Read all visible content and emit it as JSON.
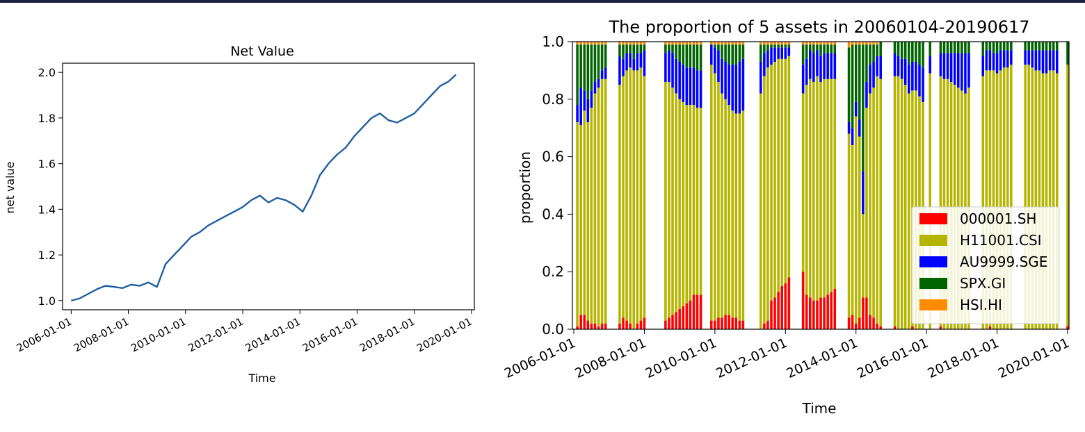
{
  "colors": {
    "frame": "#1c2340",
    "line": "#1f5fa0",
    "asset_colors": [
      "#ff0000",
      "#b5b500",
      "#0000ff",
      "#006400",
      "#ff8c00"
    ]
  },
  "chart_data": [
    {
      "type": "line",
      "title": "Net Value",
      "xlabel": "Time",
      "ylabel": "net value",
      "xlim": [
        2005.7,
        2020.1
      ],
      "ylim": [
        0.96,
        2.04
      ],
      "grid": false,
      "x_ticks": [
        {
          "value": 2006,
          "label": "2006-01-01"
        },
        {
          "value": 2008,
          "label": "2008-01-01"
        },
        {
          "value": 2010,
          "label": "2010-01-01"
        },
        {
          "value": 2012,
          "label": "2012-01-01"
        },
        {
          "value": 2014,
          "label": "2014-01-01"
        },
        {
          "value": 2016,
          "label": "2016-01-01"
        },
        {
          "value": 2018,
          "label": "2018-01-01"
        },
        {
          "value": 2020,
          "label": "2020-01-01"
        }
      ],
      "y_ticks": [
        {
          "value": 1.0,
          "label": "1.0"
        },
        {
          "value": 1.2,
          "label": "1.2"
        },
        {
          "value": 1.4,
          "label": "1.4"
        },
        {
          "value": 1.6,
          "label": "1.6"
        },
        {
          "value": 1.8,
          "label": "1.8"
        },
        {
          "value": 2.0,
          "label": "2.0"
        }
      ],
      "series": [
        {
          "x": [
            2006.0,
            2006.3,
            2006.6,
            2006.9,
            2007.2,
            2007.5,
            2007.8,
            2008.1,
            2008.4,
            2008.7,
            2009.0,
            2009.3,
            2009.6,
            2009.9,
            2010.2,
            2010.5,
            2010.8,
            2011.1,
            2011.4,
            2011.7,
            2012.0,
            2012.3,
            2012.6,
            2012.9,
            2013.2,
            2013.5,
            2013.8,
            2014.1,
            2014.4,
            2014.7,
            2015.0,
            2015.3,
            2015.6,
            2015.9,
            2016.2,
            2016.5,
            2016.8,
            2017.1,
            2017.4,
            2017.7,
            2018.0,
            2018.3,
            2018.6,
            2018.9,
            2019.2,
            2019.46
          ],
          "y": [
            1.0,
            1.01,
            1.03,
            1.05,
            1.065,
            1.06,
            1.055,
            1.07,
            1.065,
            1.08,
            1.06,
            1.16,
            1.2,
            1.24,
            1.28,
            1.3,
            1.33,
            1.35,
            1.37,
            1.39,
            1.41,
            1.44,
            1.46,
            1.43,
            1.45,
            1.44,
            1.42,
            1.39,
            1.46,
            1.55,
            1.6,
            1.64,
            1.67,
            1.72,
            1.76,
            1.8,
            1.82,
            1.79,
            1.78,
            1.8,
            1.82,
            1.86,
            1.9,
            1.94,
            1.96,
            1.99
          ]
        }
      ]
    },
    {
      "type": "bar",
      "stacked": true,
      "title": "The proportion of 5 assets in 20060104-20190617",
      "xlabel": "Time",
      "ylabel": "proportion",
      "xlim": [
        2005.96,
        2020.04
      ],
      "ylim": [
        0,
        1.0
      ],
      "grid": false,
      "legend_position": "bottom-right",
      "x_ticks": [
        {
          "value": 2006,
          "label": "2006-01-01"
        },
        {
          "value": 2008,
          "label": "2008-01-01"
        },
        {
          "value": 2010,
          "label": "2010-01-01"
        },
        {
          "value": 2012,
          "label": "2012-01-01"
        },
        {
          "value": 2014,
          "label": "2014-01-01"
        },
        {
          "value": 2016,
          "label": "2016-01-01"
        },
        {
          "value": 2018,
          "label": "2018-01-01"
        },
        {
          "value": 2020,
          "label": "2020-01-01"
        }
      ],
      "y_ticks": [
        {
          "value": 0.0,
          "label": "0.0"
        },
        {
          "value": 0.2,
          "label": "0.2"
        },
        {
          "value": 0.4,
          "label": "0.4"
        },
        {
          "value": 0.6,
          "label": "0.6"
        },
        {
          "value": 0.8,
          "label": "0.8"
        },
        {
          "value": 1.0,
          "label": "1.0"
        }
      ],
      "legend": [
        "000001.SH",
        "H11001.CSI",
        "AU9999.SGE",
        "SPX.GI",
        "HSI.HI"
      ],
      "bar_width_years": 0.07,
      "x": [
        2006.1,
        2006.2,
        2006.3,
        2006.4,
        2006.5,
        2006.6,
        2006.7,
        2006.8,
        2006.9,
        2007.0,
        2007.1,
        2007.3,
        2007.4,
        2007.5,
        2007.6,
        2007.7,
        2007.8,
        2007.9,
        2008.0,
        2008.1,
        2008.2,
        2008.6,
        2008.7,
        2008.8,
        2008.9,
        2009.0,
        2009.1,
        2009.2,
        2009.3,
        2009.4,
        2009.5,
        2009.6,
        2009.9,
        2010.0,
        2010.1,
        2010.2,
        2010.3,
        2010.4,
        2010.5,
        2010.6,
        2010.7,
        2010.8,
        2010.9,
        2011.2,
        2011.3,
        2011.4,
        2011.5,
        2011.6,
        2011.7,
        2011.8,
        2011.9,
        2012.0,
        2012.1,
        2012.2,
        2012.5,
        2012.6,
        2012.7,
        2012.8,
        2012.9,
        2013.0,
        2013.1,
        2013.2,
        2013.3,
        2013.4,
        2013.5,
        2013.8,
        2013.9,
        2014.0,
        2014.1,
        2014.2,
        2014.3,
        2014.4,
        2014.5,
        2014.6,
        2014.7,
        2014.8,
        2015.1,
        2015.2,
        2015.3,
        2015.4,
        2015.5,
        2015.6,
        2015.7,
        2015.8,
        2015.9,
        2016.0,
        2016.1,
        2016.4,
        2016.5,
        2016.6,
        2016.7,
        2016.8,
        2016.9,
        2017.0,
        2017.1,
        2017.2,
        2017.5,
        2017.6,
        2017.7,
        2017.8,
        2017.9,
        2018.0,
        2018.1,
        2018.2,
        2018.3,
        2018.4,
        2018.5,
        2018.8,
        2018.9,
        2019.0,
        2019.1,
        2019.2,
        2019.3,
        2019.4,
        2019.5,
        2019.6,
        2019.7,
        2019.8,
        2020.0
      ],
      "series": [
        {
          "name": "000001.SH",
          "values": [
            0.01,
            0.05,
            0.05,
            0.03,
            0.02,
            0.02,
            0.01,
            0.02,
            0.02,
            0.0,
            0.0,
            0.02,
            0.04,
            0.03,
            0.02,
            0.0,
            0.02,
            0.03,
            0.04,
            0.0,
            0.0,
            0.03,
            0.04,
            0.05,
            0.06,
            0.07,
            0.08,
            0.09,
            0.1,
            0.12,
            0.12,
            0.12,
            0.03,
            0.03,
            0.04,
            0.04,
            0.05,
            0.05,
            0.04,
            0.04,
            0.03,
            0.03,
            0.0,
            0.0,
            0.0,
            0.02,
            0.03,
            0.1,
            0.11,
            0.13,
            0.15,
            0.16,
            0.18,
            0.0,
            0.2,
            0.12,
            0.11,
            0.1,
            0.1,
            0.11,
            0.11,
            0.12,
            0.13,
            0.14,
            0.0,
            0.04,
            0.05,
            0.02,
            0.04,
            0.11,
            0.11,
            0.05,
            0.04,
            0.02,
            0.01,
            0.0,
            0.01,
            0.0,
            0.0,
            0.0,
            0.0,
            0.01,
            0.0,
            0.0,
            0.0,
            0.0,
            0.0,
            0.01,
            0.0,
            0.0,
            0.0,
            0.0,
            0.0,
            0.0,
            0.0,
            0.0,
            0.0,
            0.0,
            0.0,
            0.01,
            0.0,
            0.0,
            0.0,
            0.0,
            0.0,
            0.0,
            0.0,
            0.0,
            0.0,
            0.0,
            0.0,
            0.0,
            0.0,
            0.0,
            0.0,
            0.0,
            0.0,
            0.0,
            0.01
          ]
        },
        {
          "name": "H11001.CSI",
          "values": [
            0.71,
            0.66,
            0.71,
            0.69,
            0.75,
            0.8,
            0.83,
            0.85,
            0.85,
            0.0,
            0.0,
            0.83,
            0.84,
            0.87,
            0.89,
            0.9,
            0.88,
            0.88,
            0.84,
            0.0,
            0.0,
            0.83,
            0.82,
            0.79,
            0.76,
            0.73,
            0.71,
            0.69,
            0.68,
            0.66,
            0.65,
            0.65,
            0.89,
            0.86,
            0.82,
            0.78,
            0.75,
            0.73,
            0.72,
            0.71,
            0.72,
            0.73,
            0.0,
            0.0,
            0.82,
            0.86,
            0.88,
            0.82,
            0.82,
            0.81,
            0.79,
            0.78,
            0.77,
            0.0,
            0.62,
            0.73,
            0.76,
            0.76,
            0.78,
            0.75,
            0.76,
            0.75,
            0.74,
            0.73,
            0.0,
            0.64,
            0.59,
            0.72,
            0.63,
            0.29,
            0.66,
            0.77,
            0.8,
            0.86,
            0.86,
            0.0,
            0.87,
            0.88,
            0.87,
            0.85,
            0.82,
            0.82,
            0.83,
            0.81,
            0.79,
            0.0,
            0.89,
            0.87,
            0.87,
            0.87,
            0.86,
            0.85,
            0.84,
            0.83,
            0.82,
            0.84,
            0.0,
            0.88,
            0.9,
            0.89,
            0.9,
            0.89,
            0.9,
            0.91,
            0.91,
            0.92,
            0.0,
            0.92,
            0.92,
            0.91,
            0.9,
            0.9,
            0.89,
            0.89,
            0.9,
            0.9,
            0.89,
            0.0,
            0.91
          ]
        },
        {
          "name": "AU9999.SGE",
          "values": [
            0.06,
            0.13,
            0.07,
            0.08,
            0.06,
            0.04,
            0.03,
            0.03,
            0.04,
            0.0,
            0.0,
            0.1,
            0.06,
            0.06,
            0.05,
            0.04,
            0.06,
            0.05,
            0.09,
            0.0,
            0.0,
            0.1,
            0.11,
            0.12,
            0.12,
            0.13,
            0.13,
            0.13,
            0.13,
            0.13,
            0.13,
            0.13,
            0.07,
            0.09,
            0.11,
            0.12,
            0.13,
            0.14,
            0.16,
            0.17,
            0.18,
            0.18,
            0.0,
            0.0,
            0.11,
            0.08,
            0.06,
            0.06,
            0.05,
            0.04,
            0.04,
            0.04,
            0.03,
            0.0,
            0.1,
            0.09,
            0.1,
            0.1,
            0.09,
            0.09,
            0.09,
            0.09,
            0.09,
            0.09,
            0.0,
            0.04,
            0.06,
            0.05,
            0.06,
            0.15,
            0.09,
            0.1,
            0.09,
            0.07,
            0.08,
            0.0,
            0.08,
            0.07,
            0.07,
            0.09,
            0.1,
            0.1,
            0.1,
            0.11,
            0.12,
            0.0,
            0.06,
            0.08,
            0.09,
            0.09,
            0.1,
            0.11,
            0.12,
            0.13,
            0.14,
            0.12,
            0.0,
            0.07,
            0.07,
            0.07,
            0.06,
            0.07,
            0.07,
            0.06,
            0.06,
            0.05,
            0.0,
            0.05,
            0.05,
            0.06,
            0.07,
            0.07,
            0.08,
            0.08,
            0.07,
            0.07,
            0.08,
            0.0,
            0.0
          ]
        },
        {
          "name": "SPX.GI",
          "values": [
            0.21,
            0.15,
            0.16,
            0.19,
            0.16,
            0.13,
            0.12,
            0.09,
            0.08,
            0.0,
            0.0,
            0.04,
            0.05,
            0.03,
            0.03,
            0.05,
            0.03,
            0.03,
            0.02,
            0.0,
            0.0,
            0.03,
            0.02,
            0.03,
            0.05,
            0.06,
            0.07,
            0.08,
            0.08,
            0.08,
            0.09,
            0.09,
            0.0,
            0.01,
            0.02,
            0.05,
            0.06,
            0.07,
            0.07,
            0.07,
            0.06,
            0.05,
            0.0,
            0.0,
            0.06,
            0.03,
            0.02,
            0.01,
            0.01,
            0.01,
            0.01,
            0.01,
            0.01,
            0.0,
            0.07,
            0.05,
            0.02,
            0.03,
            0.02,
            0.04,
            0.03,
            0.03,
            0.03,
            0.03,
            0.0,
            0.26,
            0.29,
            0.2,
            0.26,
            0.44,
            0.13,
            0.07,
            0.06,
            0.04,
            0.05,
            0.0,
            0.04,
            0.05,
            0.06,
            0.06,
            0.08,
            0.07,
            0.07,
            0.08,
            0.09,
            0.0,
            0.05,
            0.04,
            0.04,
            0.04,
            0.04,
            0.04,
            0.04,
            0.04,
            0.04,
            0.04,
            0.0,
            0.05,
            0.03,
            0.03,
            0.04,
            0.04,
            0.03,
            0.03,
            0.03,
            0.03,
            0.0,
            0.03,
            0.03,
            0.03,
            0.03,
            0.03,
            0.03,
            0.03,
            0.03,
            0.03,
            0.03,
            0.0,
            0.08
          ]
        },
        {
          "name": "HSI.HI",
          "values": [
            0.01,
            0.01,
            0.01,
            0.01,
            0.01,
            0.01,
            0.01,
            0.01,
            0.01,
            0.0,
            0.0,
            0.01,
            0.01,
            0.01,
            0.01,
            0.01,
            0.01,
            0.01,
            0.01,
            0.0,
            0.0,
            0.01,
            0.01,
            0.01,
            0.01,
            0.01,
            0.01,
            0.01,
            0.01,
            0.01,
            0.01,
            0.01,
            0.01,
            0.01,
            0.01,
            0.01,
            0.01,
            0.01,
            0.01,
            0.01,
            0.01,
            0.01,
            0.0,
            0.0,
            0.01,
            0.01,
            0.01,
            0.01,
            0.01,
            0.01,
            0.01,
            0.01,
            0.01,
            0.0,
            0.01,
            0.01,
            0.01,
            0.01,
            0.01,
            0.01,
            0.01,
            0.01,
            0.01,
            0.01,
            0.0,
            0.02,
            0.01,
            0.01,
            0.01,
            0.01,
            0.01,
            0.01,
            0.01,
            0.01,
            0.0,
            0.0,
            0.0,
            0.0,
            0.0,
            0.0,
            0.0,
            0.0,
            0.0,
            0.0,
            0.0,
            0.0,
            0.0,
            0.0,
            0.0,
            0.0,
            0.0,
            0.0,
            0.0,
            0.0,
            0.0,
            0.0,
            0.0,
            0.0,
            0.0,
            0.0,
            0.0,
            0.0,
            0.0,
            0.0,
            0.0,
            0.0,
            0.0,
            0.0,
            0.0,
            0.0,
            0.0,
            0.0,
            0.0,
            0.0,
            0.0,
            0.0,
            0.0,
            0.0,
            0.0
          ]
        }
      ]
    }
  ]
}
